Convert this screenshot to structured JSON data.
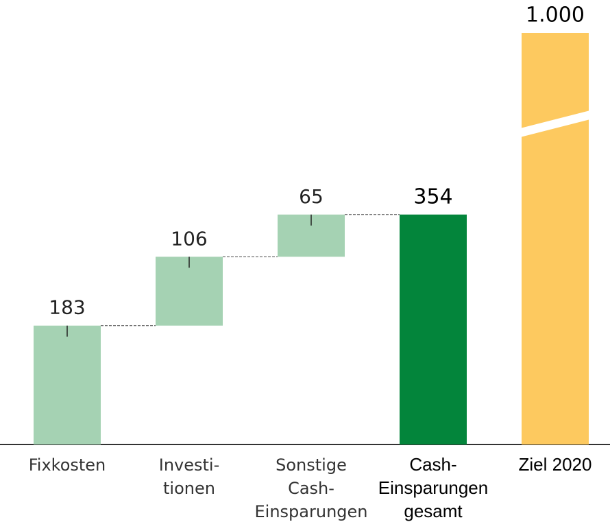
{
  "chart_data": {
    "type": "waterfall",
    "categories": [
      [
        "Fixkosten"
      ],
      [
        "Investi-",
        "tionen"
      ],
      [
        "Sonstige",
        "Cash-",
        "Einsparungen"
      ],
      [
        "Cash-",
        "Einsparungen",
        "gesamt"
      ],
      [
        "Ziel 2020"
      ]
    ],
    "values": [
      183,
      106,
      65,
      354,
      1000
    ],
    "value_labels": [
      "183",
      "106",
      "65",
      "354",
      "1.000"
    ],
    "measure": [
      "relative",
      "relative",
      "relative",
      "total",
      "target"
    ],
    "colors": [
      "#a5d2b3",
      "#a5d2b3",
      "#a5d2b3",
      "#03853b",
      "#fdc95f"
    ]
  }
}
